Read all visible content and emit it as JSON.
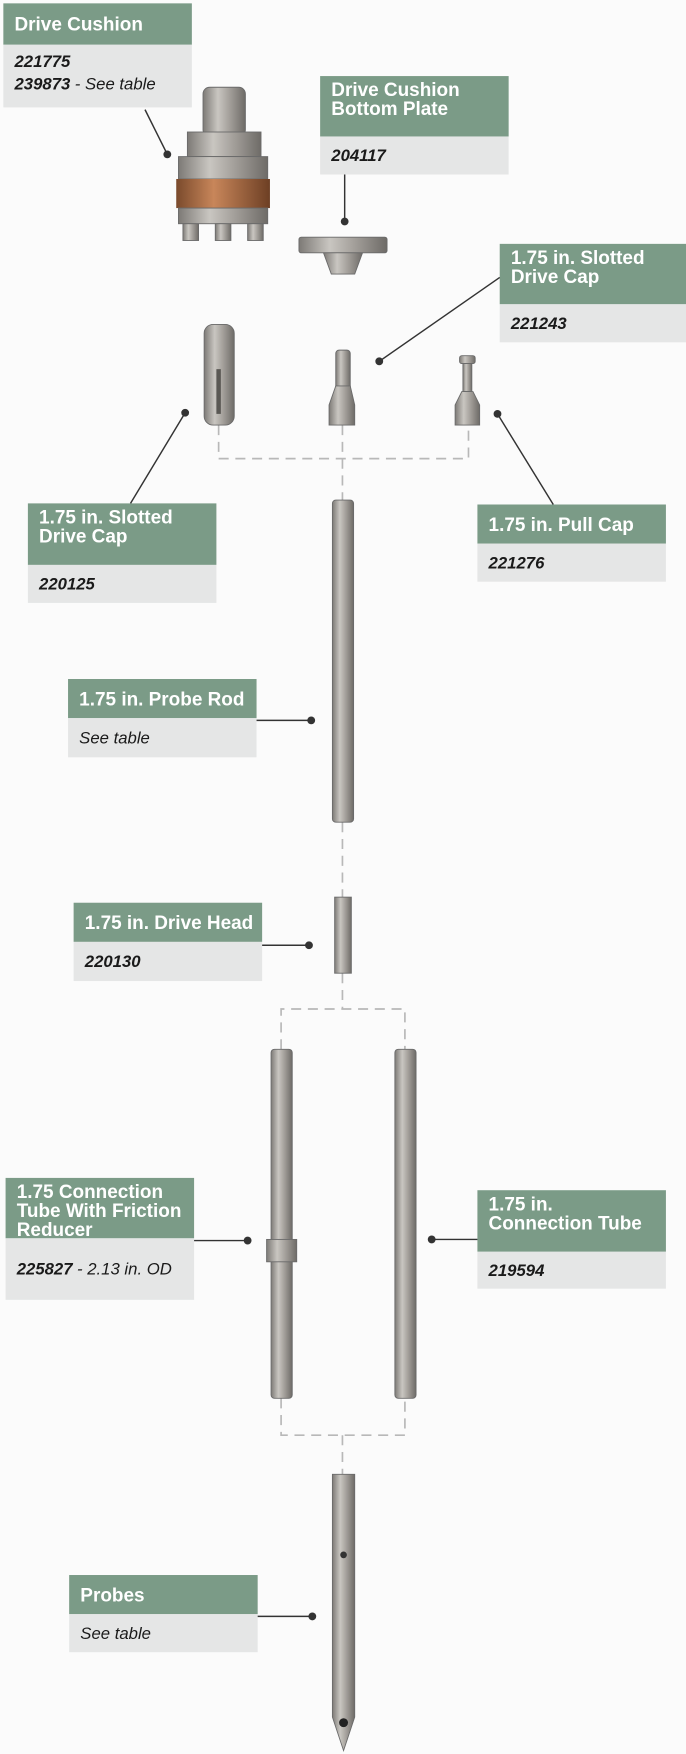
{
  "labels": [
    {
      "title_lines": [
        "Drive Cushion"
      ],
      "parts": [
        {
          "number": "221775"
        },
        {
          "number": "239873",
          "note": "- See table"
        }
      ]
    },
    {
      "title_lines": [
        "Drive Cushion",
        "Bottom Plate"
      ],
      "parts": [
        {
          "number": "204117"
        }
      ]
    },
    {
      "title_lines": [
        "1.75 in. Slotted",
        "Drive Cap"
      ],
      "parts": [
        {
          "number": "221243"
        }
      ]
    },
    {
      "title_lines": [
        "1.75 in. Slotted",
        "Drive Cap"
      ],
      "parts": [
        {
          "number": "220125"
        }
      ]
    },
    {
      "title_lines": [
        "1.75 in. Pull Cap"
      ],
      "parts": [
        {
          "number": "221276"
        }
      ]
    },
    {
      "title_lines": [
        "1.75 in. Probe Rod"
      ],
      "parts": [
        {
          "note": "See table"
        }
      ]
    },
    {
      "title_lines": [
        "1.75 in. Drive Head"
      ],
      "parts": [
        {
          "number": "220130"
        }
      ]
    },
    {
      "title_lines": [
        "1.75 Connection",
        "Tube With Friction",
        "Reducer"
      ],
      "parts": [
        {
          "number": "225827",
          "note": "- 2.13 in. OD"
        }
      ]
    },
    {
      "title_lines": [
        "1.75 in.",
        "Connection Tube"
      ],
      "parts": [
        {
          "number": "219594"
        }
      ]
    },
    {
      "title_lines": [
        "Probes"
      ],
      "parts": [
        {
          "note": "See table"
        }
      ]
    }
  ]
}
